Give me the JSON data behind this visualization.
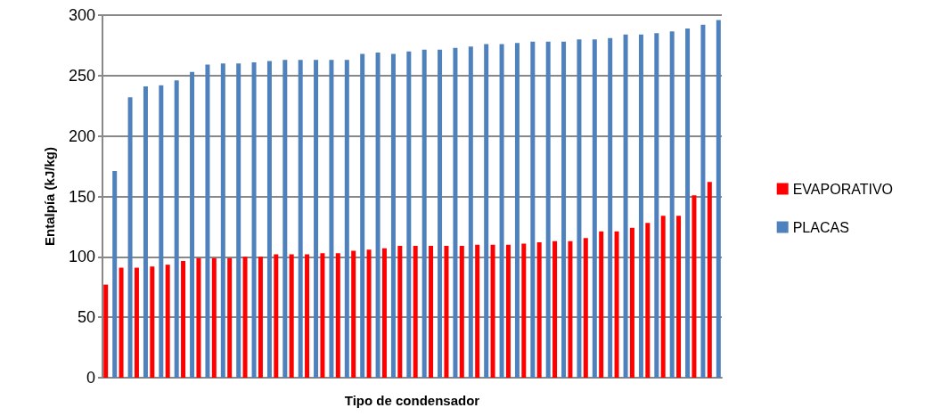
{
  "chart_data": {
    "type": "bar",
    "xlabel": "Tipo de condensador",
    "ylabel": "Entalpía (kJ/kg)",
    "categories": [
      null,
      null,
      null,
      null,
      null,
      null,
      null,
      null,
      null,
      null,
      null,
      null,
      null,
      null,
      null,
      null,
      null,
      null,
      null,
      null,
      null,
      null,
      null,
      null,
      null,
      null,
      null,
      null,
      null,
      null,
      null,
      null,
      null,
      null,
      null,
      null,
      null,
      null,
      null,
      null
    ],
    "series": [
      {
        "name": "EVAPORATIVO",
        "color": "#ff0000",
        "values": [
          77,
          91,
          91,
          92,
          93.5,
          96.5,
          99,
          99,
          99,
          100,
          100,
          102,
          102,
          102,
          103,
          103,
          105,
          106,
          107,
          109,
          109,
          109,
          109,
          109,
          110,
          110,
          110,
          111,
          112,
          113,
          113,
          115.5,
          121,
          121,
          124,
          128,
          134,
          134,
          151,
          162
        ]
      },
      {
        "name": "PLACAS",
        "color": "#4f81bd",
        "values": [
          171,
          232,
          241,
          242,
          246,
          253,
          259,
          260,
          260,
          261,
          262,
          263,
          263,
          263,
          263,
          263,
          268,
          269,
          268,
          270,
          271.5,
          271.5,
          273,
          274,
          276,
          276,
          277,
          278,
          278,
          278,
          280,
          280,
          281,
          284,
          284,
          285,
          286.5,
          289,
          292,
          296
        ]
      }
    ],
    "ylim": [
      0,
      300
    ],
    "yticks": [
      0,
      50,
      100,
      150,
      200,
      250,
      300
    ],
    "grid": "y",
    "legend": "right"
  }
}
